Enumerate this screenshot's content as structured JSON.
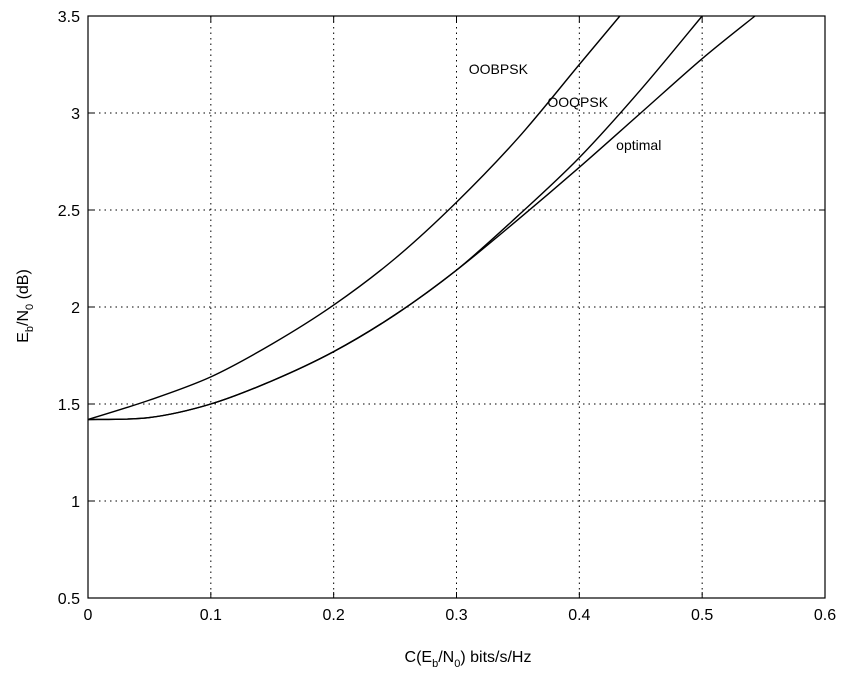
{
  "chart_data": {
    "type": "line",
    "xlabel": {
      "pre": "C(E",
      "sub1": "b",
      "mid": "/N",
      "sub2": "0",
      "post": ") bits/s/Hz"
    },
    "ylabel": {
      "pre": "E",
      "sub1": "b",
      "mid": "/N",
      "sub2": "0",
      "post": " (dB)"
    },
    "xlim": [
      0,
      0.6
    ],
    "ylim": [
      0.5,
      3.5
    ],
    "xticks": [
      0,
      0.1,
      0.2,
      0.3,
      0.4,
      0.5,
      0.6
    ],
    "xtick_labels": [
      "0",
      "0.1",
      "0.2",
      "0.3",
      "0.4",
      "0.5",
      "0.6"
    ],
    "yticks": [
      0.5,
      1,
      1.5,
      2,
      2.5,
      3,
      3.5
    ],
    "ytick_labels": [
      "0.5",
      "1",
      "1.5",
      "2",
      "2.5",
      "3",
      "3.5"
    ],
    "grid": true,
    "series": [
      {
        "name": "OOBPSK",
        "x": [
          0,
          0.05,
          0.1,
          0.15,
          0.2,
          0.25,
          0.3,
          0.35,
          0.4,
          0.433
        ],
        "y": [
          1.42,
          1.52,
          1.64,
          1.81,
          2.01,
          2.25,
          2.54,
          2.87,
          3.25,
          3.5
        ]
      },
      {
        "name": "OOQPSK",
        "x": [
          0,
          0.05,
          0.1,
          0.15,
          0.2,
          0.25,
          0.3,
          0.35,
          0.4,
          0.45,
          0.5
        ],
        "y": [
          1.42,
          1.43,
          1.5,
          1.62,
          1.77,
          1.96,
          2.19,
          2.47,
          2.77,
          3.12,
          3.5
        ]
      },
      {
        "name": "optimal",
        "x": [
          0,
          0.05,
          0.1,
          0.15,
          0.2,
          0.25,
          0.3,
          0.35,
          0.4,
          0.45,
          0.5,
          0.543
        ],
        "y": [
          1.42,
          1.43,
          1.5,
          1.62,
          1.77,
          1.96,
          2.19,
          2.45,
          2.72,
          3.0,
          3.28,
          3.5
        ]
      }
    ],
    "annotations": [
      {
        "text": "OOBPSK",
        "x": 0.31,
        "y": 3.2
      },
      {
        "text": "OOQPSK",
        "x": 0.374,
        "y": 3.03
      },
      {
        "text": "optimal",
        "x": 0.43,
        "y": 2.81
      }
    ]
  }
}
